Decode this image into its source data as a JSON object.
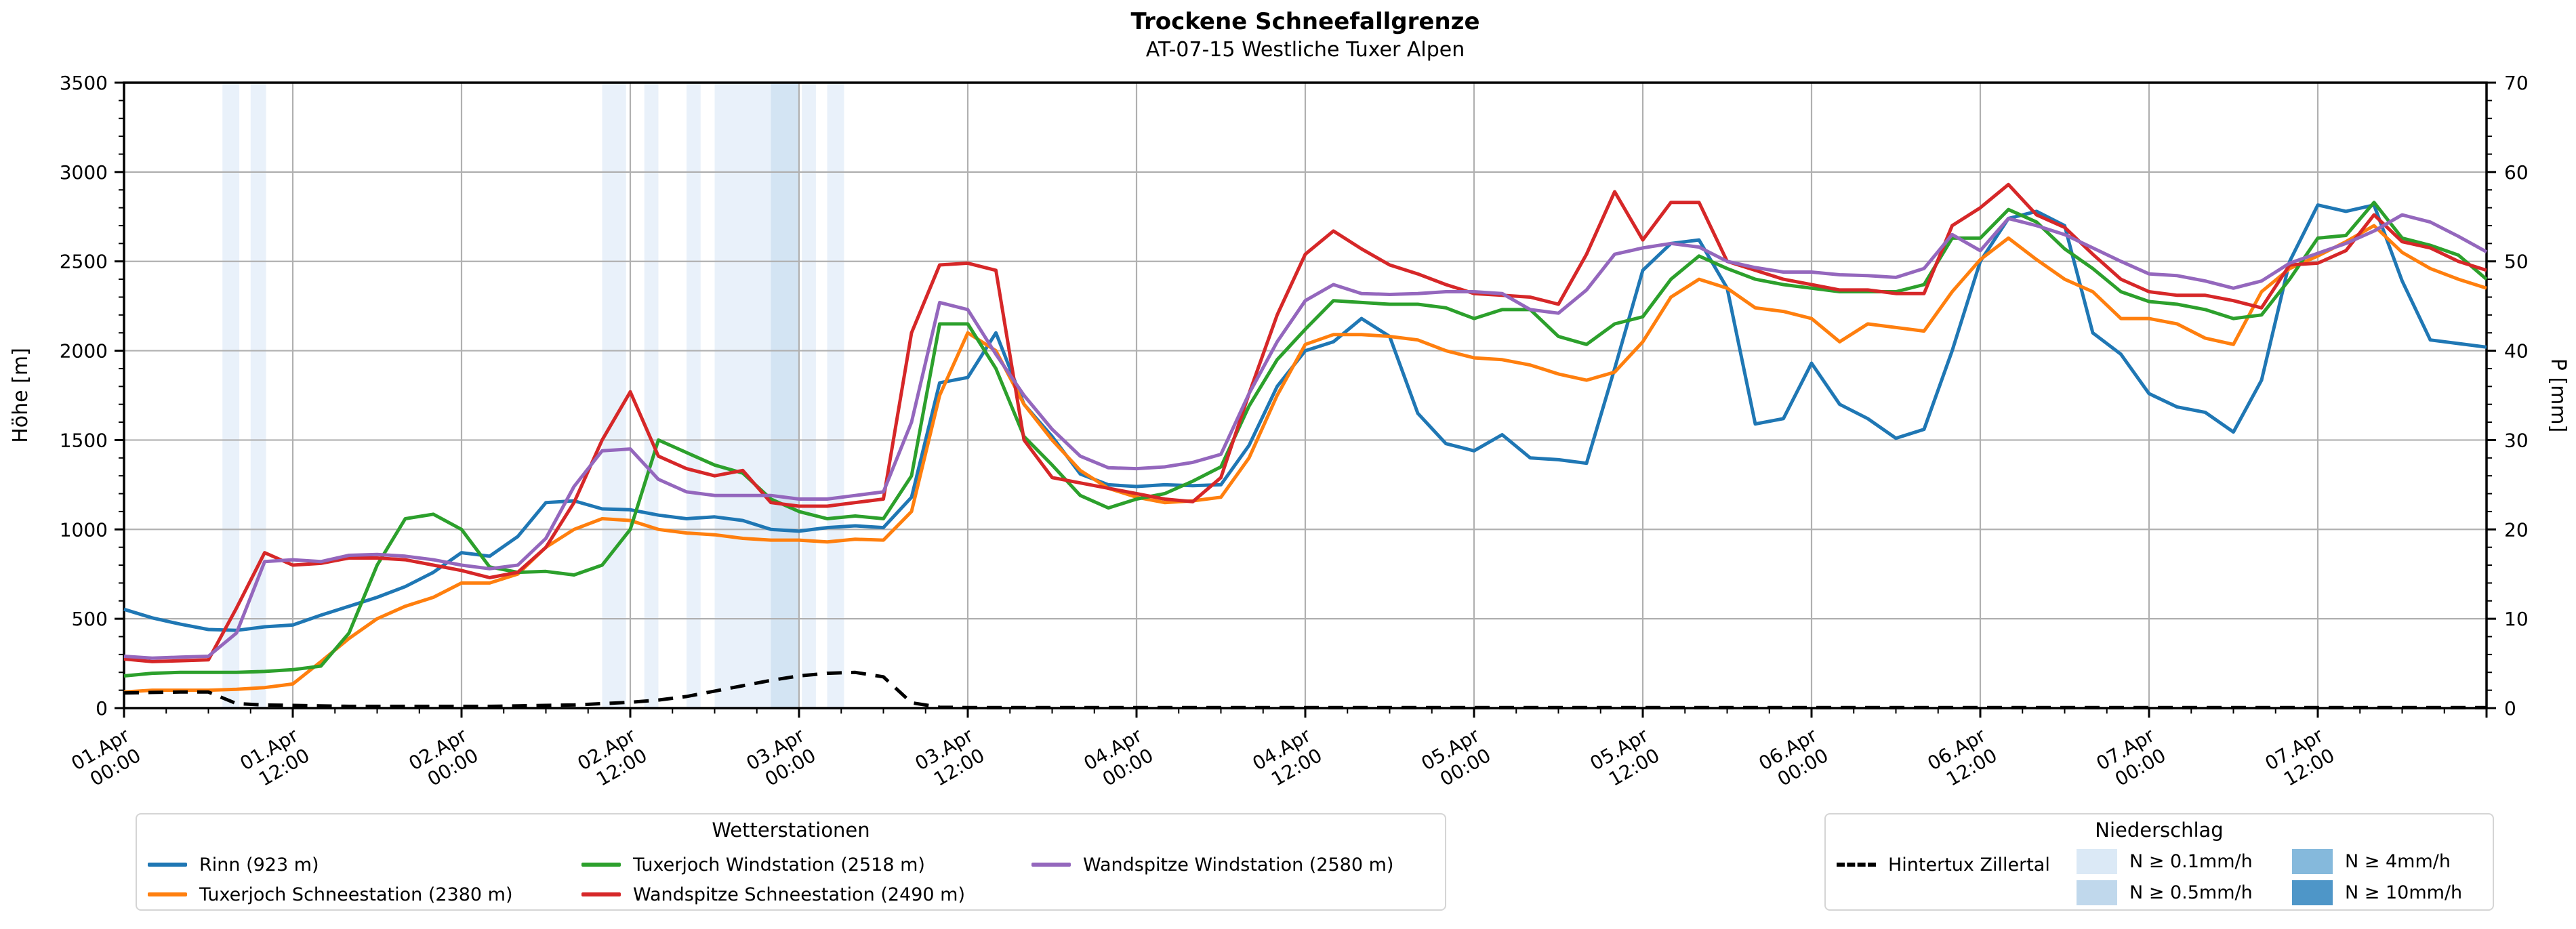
{
  "title": {
    "text": "Trockene Schneefallgrenze",
    "subtitle": "AT-07-15 Westliche Tuxer Alpen"
  },
  "axes": {
    "y_left_label": "Höhe [m]",
    "y_right_label": "P [mm]",
    "y_left_ticks": [
      0,
      500,
      1000,
      1500,
      2000,
      2500,
      3000,
      3500
    ],
    "y_right_ticks": [
      0,
      10,
      20,
      30,
      40,
      50,
      60,
      70
    ],
    "y_left_max": 3500,
    "y_right_max": 70,
    "x_tick_labels": [
      {
        "date": "01.Apr",
        "time": "00:00",
        "hour": 0
      },
      {
        "date": "01.Apr",
        "time": "12:00",
        "hour": 12
      },
      {
        "date": "02.Apr",
        "time": "00:00",
        "hour": 24
      },
      {
        "date": "02.Apr",
        "time": "12:00",
        "hour": 36
      },
      {
        "date": "03.Apr",
        "time": "00:00",
        "hour": 48
      },
      {
        "date": "03.Apr",
        "time": "12:00",
        "hour": 60
      },
      {
        "date": "04.Apr",
        "time": "00:00",
        "hour": 72
      },
      {
        "date": "04.Apr",
        "time": "12:00",
        "hour": 84
      },
      {
        "date": "05.Apr",
        "time": "00:00",
        "hour": 96
      },
      {
        "date": "05.Apr",
        "time": "12:00",
        "hour": 108
      },
      {
        "date": "06.Apr",
        "time": "00:00",
        "hour": 120
      },
      {
        "date": "06.Apr",
        "time": "12:00",
        "hour": 132
      },
      {
        "date": "07.Apr",
        "time": "00:00",
        "hour": 144
      },
      {
        "date": "07.Apr",
        "time": "12:00",
        "hour": 156
      }
    ],
    "x_total_hours": 168,
    "grid_color": "#b0b0b0"
  },
  "chart_data": {
    "type": "line",
    "title": "Trockene Schneefallgrenze",
    "xlabel": "",
    "ylabel": "Höhe [m]",
    "ylabel_right": "P [mm]",
    "ylim": [
      0,
      3500
    ],
    "ylim_right": [
      0,
      70
    ],
    "x_hours": [
      0,
      2,
      4,
      6,
      8,
      10,
      12,
      14,
      16,
      18,
      20,
      22,
      24,
      26,
      28,
      30,
      32,
      34,
      36,
      38,
      40,
      42,
      44,
      46,
      48,
      50,
      52,
      54,
      56,
      58,
      60,
      62,
      64,
      66,
      68,
      70,
      72,
      74,
      76,
      78,
      80,
      82,
      84,
      86,
      88,
      90,
      92,
      94,
      96,
      98,
      100,
      102,
      104,
      106,
      108,
      110,
      112,
      114,
      116,
      118,
      120,
      122,
      124,
      126,
      128,
      130,
      132,
      134,
      136,
      138,
      140,
      142,
      144,
      146,
      148,
      150,
      152,
      154,
      156,
      158,
      160,
      162,
      164,
      166,
      168
    ],
    "series": [
      {
        "name": "Rinn (923 m)",
        "color": "#1f77b4",
        "axis": "left",
        "values": [
          553,
          505,
          470,
          440,
          435,
          455,
          465,
          520,
          570,
          620,
          680,
          760,
          870,
          850,
          960,
          1150,
          1160,
          1115,
          1110,
          1080,
          1060,
          1070,
          1050,
          1000,
          990,
          1010,
          1020,
          1010,
          1180,
          1820,
          1850,
          2100,
          1700,
          1520,
          1310,
          1250,
          1240,
          1250,
          1245,
          1250,
          1470,
          1800,
          2000,
          2050,
          2180,
          2080,
          1650,
          1480,
          1440,
          1530,
          1400,
          1390,
          1370,
          1900,
          2450,
          2600,
          2620,
          2350,
          1590,
          1620,
          1930,
          1700,
          1620,
          1510,
          1560,
          2000,
          2500,
          2740,
          2780,
          2700,
          2100,
          1980,
          1760,
          1685,
          1655,
          1545,
          1835,
          2500,
          2815,
          2780,
          2815,
          2390,
          2060,
          2040,
          2020
        ]
      },
      {
        "name": "Tuxerjoch Schneestation (2380 m)",
        "color": "#ff7f0e",
        "axis": "left",
        "values": [
          90,
          100,
          100,
          100,
          105,
          115,
          135,
          260,
          390,
          500,
          570,
          620,
          700,
          700,
          750,
          900,
          1000,
          1060,
          1050,
          1000,
          980,
          970,
          950,
          940,
          940,
          930,
          945,
          940,
          1100,
          1750,
          2100,
          2000,
          1700,
          1500,
          1330,
          1230,
          1180,
          1150,
          1160,
          1180,
          1400,
          1750,
          2035,
          2090,
          2090,
          2080,
          2060,
          2000,
          1960,
          1950,
          1920,
          1870,
          1835,
          1880,
          2050,
          2300,
          2400,
          2350,
          2240,
          2220,
          2180,
          2050,
          2150,
          2130,
          2110,
          2330,
          2510,
          2630,
          2510,
          2400,
          2330,
          2180,
          2180,
          2150,
          2070,
          2035,
          2330,
          2460,
          2530,
          2610,
          2700,
          2550,
          2460,
          2400,
          2350
        ]
      },
      {
        "name": "Tuxerjoch Windstation (2518 m)",
        "color": "#2ca02c",
        "axis": "left",
        "values": [
          180,
          195,
          200,
          200,
          200,
          205,
          215,
          235,
          420,
          800,
          1060,
          1085,
          1000,
          790,
          760,
          765,
          745,
          800,
          1000,
          1500,
          1430,
          1360,
          1315,
          1170,
          1100,
          1060,
          1075,
          1060,
          1300,
          2150,
          2150,
          1900,
          1520,
          1360,
          1190,
          1120,
          1170,
          1200,
          1270,
          1350,
          1690,
          1950,
          2120,
          2280,
          2270,
          2260,
          2260,
          2240,
          2180,
          2230,
          2230,
          2080,
          2035,
          2150,
          2190,
          2400,
          2530,
          2460,
          2400,
          2370,
          2350,
          2330,
          2330,
          2330,
          2370,
          2630,
          2630,
          2790,
          2720,
          2570,
          2460,
          2330,
          2275,
          2260,
          2230,
          2180,
          2200,
          2400,
          2630,
          2645,
          2830,
          2630,
          2590,
          2535,
          2400
        ]
      },
      {
        "name": "Wandspitze Schneestation (2490 m)",
        "color": "#d62728",
        "axis": "left",
        "values": [
          275,
          260,
          265,
          270,
          560,
          870,
          800,
          810,
          840,
          840,
          830,
          800,
          770,
          730,
          760,
          900,
          1150,
          1500,
          1770,
          1410,
          1340,
          1300,
          1330,
          1150,
          1130,
          1130,
          1150,
          1170,
          2100,
          2480,
          2490,
          2450,
          1500,
          1290,
          1260,
          1230,
          1200,
          1170,
          1155,
          1290,
          1760,
          2200,
          2540,
          2670,
          2570,
          2480,
          2430,
          2370,
          2320,
          2310,
          2300,
          2260,
          2540,
          2890,
          2620,
          2830,
          2830,
          2500,
          2450,
          2400,
          2370,
          2340,
          2340,
          2320,
          2320,
          2700,
          2800,
          2930,
          2760,
          2690,
          2540,
          2400,
          2330,
          2310,
          2310,
          2280,
          2240,
          2480,
          2490,
          2560,
          2760,
          2610,
          2575,
          2500,
          2450
        ]
      },
      {
        "name": "Wandspitze Windstation (2580 m)",
        "color": "#9467bd",
        "axis": "left",
        "values": [
          290,
          280,
          285,
          290,
          420,
          820,
          830,
          820,
          855,
          860,
          850,
          830,
          800,
          780,
          800,
          950,
          1240,
          1440,
          1450,
          1280,
          1210,
          1190,
          1190,
          1190,
          1170,
          1170,
          1190,
          1210,
          1600,
          2270,
          2230,
          1980,
          1750,
          1560,
          1410,
          1345,
          1340,
          1350,
          1375,
          1420,
          1760,
          2050,
          2280,
          2370,
          2320,
          2315,
          2320,
          2330,
          2330,
          2320,
          2230,
          2210,
          2340,
          2540,
          2575,
          2600,
          2580,
          2500,
          2465,
          2440,
          2440,
          2425,
          2420,
          2410,
          2460,
          2650,
          2560,
          2740,
          2700,
          2650,
          2575,
          2500,
          2430,
          2420,
          2390,
          2350,
          2390,
          2490,
          2545,
          2600,
          2670,
          2760,
          2720,
          2640,
          2553
        ]
      },
      {
        "name": "Hintertux Zillertal",
        "color": "#000000",
        "axis": "right",
        "dashed": true,
        "values": [
          1.7,
          1.75,
          1.8,
          1.8,
          0.5,
          0.35,
          0.3,
          0.25,
          0.2,
          0.2,
          0.2,
          0.2,
          0.2,
          0.2,
          0.25,
          0.3,
          0.35,
          0.5,
          0.65,
          0.9,
          1.3,
          1.9,
          2.5,
          3.1,
          3.6,
          3.9,
          4.0,
          3.5,
          0.6,
          0.1,
          0.06,
          0.06,
          0.06,
          0.06,
          0.06,
          0.06,
          0.06,
          0.06,
          0.06,
          0.06,
          0.06,
          0.06,
          0.06,
          0.06,
          0.06,
          0.06,
          0.06,
          0.06,
          0.06,
          0.06,
          0.06,
          0.06,
          0.06,
          0.06,
          0.06,
          0.06,
          0.06,
          0.06,
          0.06,
          0.06,
          0.06,
          0.06,
          0.06,
          0.06,
          0.06,
          0.06,
          0.06,
          0.06,
          0.06,
          0.06,
          0.06,
          0.06,
          0.06,
          0.06,
          0.06,
          0.06,
          0.06,
          0.06,
          0.06,
          0.06,
          0.06,
          0.06,
          0.06,
          0.06,
          0.06
        ]
      }
    ],
    "precip_bands": [
      {
        "start_hour": 7.0,
        "end_hour": 8.2,
        "level": "0.1"
      },
      {
        "start_hour": 9.0,
        "end_hour": 10.1,
        "level": "0.1"
      },
      {
        "start_hour": 34.0,
        "end_hour": 35.7,
        "level": "0.1"
      },
      {
        "start_hour": 37.0,
        "end_hour": 38.0,
        "level": "0.1"
      },
      {
        "start_hour": 40.0,
        "end_hour": 41.0,
        "level": "0.1"
      },
      {
        "start_hour": 42.0,
        "end_hour": 46.0,
        "level": "0.1"
      },
      {
        "start_hour": 46.0,
        "end_hour": 48.0,
        "level": "0.5"
      },
      {
        "start_hour": 48.2,
        "end_hour": 49.2,
        "level": "0.1"
      },
      {
        "start_hour": 50.0,
        "end_hour": 51.2,
        "level": "0.1"
      }
    ],
    "band_colors": {
      "0.1": "#e9f1fa",
      "0.5": "#d3e4f3",
      "4": "#85b9dc",
      "10": "#4e96c8"
    },
    "legend_position": "below"
  },
  "legends": {
    "stations": {
      "title": "Wetterstationen",
      "items": [
        {
          "label": "Rinn (923 m)",
          "color": "#1f77b4"
        },
        {
          "label": "Tuxerjoch Schneestation (2380 m)",
          "color": "#ff7f0e"
        },
        {
          "label": "Tuxerjoch Windstation (2518 m)",
          "color": "#2ca02c"
        },
        {
          "label": "Wandspitze Schneestation (2490 m)",
          "color": "#d62728"
        },
        {
          "label": "Wandspitze Windstation (2580 m)",
          "color": "#9467bd"
        }
      ]
    },
    "precip": {
      "title": "Niederschlag",
      "line_item": {
        "label": "Hintertux Zillertal",
        "color": "#000000"
      },
      "patch_items": [
        {
          "label": "N ≥ 0.1mm/h",
          "color": "#dbe9f6"
        },
        {
          "label": "N ≥ 0.5mm/h",
          "color": "#c0d8ec"
        },
        {
          "label": "N ≥ 4mm/h",
          "color": "#85b9dc"
        },
        {
          "label": "N ≥ 10mm/h",
          "color": "#4e96c8"
        }
      ]
    }
  }
}
